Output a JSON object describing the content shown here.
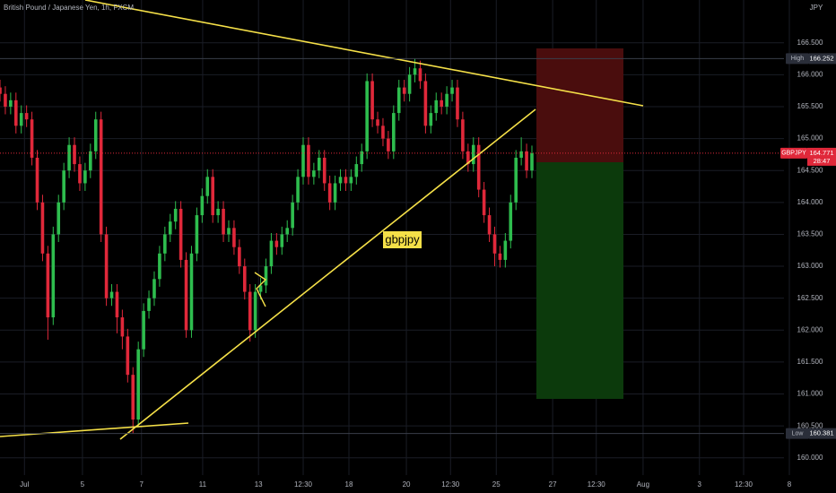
{
  "chart_data": {
    "type": "candlestick",
    "title": "British Pound / Japanese Yen, 1h, FXCM",
    "currency": "JPY",
    "up_color": "#2ebd4e",
    "down_color": "#e0283a",
    "ylim": [
      159.73,
      167.17
    ],
    "yticks": [
      {
        "value": 160,
        "label": "160.000"
      },
      {
        "value": 160.5,
        "label": "160.500"
      },
      {
        "value": 161,
        "label": "161.000"
      },
      {
        "value": 161.5,
        "label": "161.500"
      },
      {
        "value": 162,
        "label": "162.000"
      },
      {
        "value": 162.5,
        "label": "162.500"
      },
      {
        "value": 163,
        "label": "163.000"
      },
      {
        "value": 163.5,
        "label": "163.500"
      },
      {
        "value": 164,
        "label": "164.000"
      },
      {
        "value": 164.5,
        "label": "164.500"
      },
      {
        "value": 165,
        "label": "165.000"
      },
      {
        "value": 165.5,
        "label": "165.500"
      },
      {
        "value": 166,
        "label": "166.000"
      },
      {
        "value": 166.5,
        "label": "166.500"
      }
    ],
    "xlim": [
      0,
      148.4
    ],
    "xticks": [
      {
        "value": 4.6,
        "label": "Jul"
      },
      {
        "value": 15.5,
        "label": "5"
      },
      {
        "value": 26.6,
        "label": "7"
      },
      {
        "value": 38.1,
        "label": "11"
      },
      {
        "value": 48.6,
        "label": "13"
      },
      {
        "value": 57,
        "label": "12:30"
      },
      {
        "value": 65.6,
        "label": "18"
      },
      {
        "value": 76.4,
        "label": "20"
      },
      {
        "value": 84.7,
        "label": "12:30"
      },
      {
        "value": 93.3,
        "label": "25"
      },
      {
        "value": 103.9,
        "label": "27"
      },
      {
        "value": 112.1,
        "label": "12:30"
      },
      {
        "value": 120.9,
        "label": "Aug"
      },
      {
        "value": 131.5,
        "label": "3"
      },
      {
        "value": 139.8,
        "label": "12:30"
      },
      {
        "value": 148.4,
        "label": "8"
      }
    ],
    "high": {
      "label": "High",
      "value": 166.252,
      "value_label": "166.252"
    },
    "low": {
      "label": "Low",
      "value": 160.381,
      "value_label": "160.381"
    },
    "last": {
      "label": "GBPJPY",
      "value": 164.771,
      "value_label": "164.771",
      "countdown": "28:47"
    },
    "annotation": "gbpjpy",
    "candles": [
      [
        165.8,
        165.92,
        165.58,
        165.7
      ],
      [
        165.7,
        165.82,
        165.38,
        165.5
      ],
      [
        165.5,
        165.72,
        165.38,
        165.6
      ],
      [
        165.6,
        165.72,
        165.08,
        165.2
      ],
      [
        165.2,
        165.52,
        165.08,
        165.4
      ],
      [
        165.4,
        165.52,
        165.18,
        165.3
      ],
      [
        165.3,
        165.42,
        164.58,
        164.7
      ],
      [
        164.7,
        164.82,
        163.88,
        164.0
      ],
      [
        164.0,
        164.12,
        163.08,
        163.2
      ],
      [
        163.2,
        163.32,
        161.85,
        162.2
      ],
      [
        162.2,
        163.62,
        162.08,
        163.5
      ],
      [
        163.5,
        164.12,
        163.38,
        164.0
      ],
      [
        164.0,
        164.62,
        163.88,
        164.5
      ],
      [
        164.5,
        165.02,
        164.38,
        164.9
      ],
      [
        164.9,
        165.02,
        164.48,
        164.6
      ],
      [
        164.6,
        164.72,
        164.18,
        164.3
      ],
      [
        164.3,
        164.62,
        164.18,
        164.5
      ],
      [
        164.5,
        164.92,
        164.38,
        164.8
      ],
      [
        164.8,
        165.42,
        164.68,
        165.3
      ],
      [
        165.3,
        165.42,
        163.38,
        163.5
      ],
      [
        163.5,
        163.62,
        162.38,
        162.5
      ],
      [
        162.5,
        162.72,
        162.38,
        162.6
      ],
      [
        162.6,
        162.72,
        161.95,
        162.2
      ],
      [
        162.2,
        162.32,
        161.7,
        161.9
      ],
      [
        161.9,
        162.02,
        161.18,
        161.3
      ],
      [
        161.3,
        161.42,
        160.38,
        160.6
      ],
      [
        160.6,
        161.82,
        160.48,
        161.7
      ],
      [
        161.7,
        162.42,
        161.58,
        162.3
      ],
      [
        162.3,
        162.62,
        162.18,
        162.5
      ],
      [
        162.5,
        162.92,
        162.38,
        162.8
      ],
      [
        162.8,
        163.32,
        162.68,
        163.2
      ],
      [
        163.2,
        163.62,
        163.08,
        163.5
      ],
      [
        163.5,
        163.82,
        163.38,
        163.7
      ],
      [
        163.7,
        164.02,
        163.58,
        163.9
      ],
      [
        163.9,
        164.02,
        162.98,
        163.1
      ],
      [
        163.1,
        163.22,
        161.88,
        162.0
      ],
      [
        162.0,
        163.32,
        161.88,
        163.2
      ],
      [
        163.2,
        163.92,
        163.08,
        163.8
      ],
      [
        163.8,
        164.22,
        163.68,
        164.1
      ],
      [
        164.1,
        164.52,
        163.98,
        164.4
      ],
      [
        164.4,
        164.52,
        163.68,
        163.8
      ],
      [
        163.8,
        164.02,
        163.68,
        163.9
      ],
      [
        163.9,
        164.02,
        163.38,
        163.5
      ],
      [
        163.5,
        163.72,
        163.38,
        163.6
      ],
      [
        163.6,
        163.72,
        163.18,
        163.3
      ],
      [
        163.3,
        163.42,
        162.88,
        163.0
      ],
      [
        163.0,
        163.12,
        162.48,
        162.6
      ],
      [
        162.6,
        162.72,
        161.82,
        162.0
      ],
      [
        162.0,
        162.72,
        161.88,
        162.6
      ],
      [
        162.6,
        162.82,
        162.48,
        162.7
      ],
      [
        162.7,
        163.12,
        162.58,
        163.0
      ],
      [
        163.0,
        163.52,
        162.88,
        163.4
      ],
      [
        163.4,
        163.52,
        163.18,
        163.3
      ],
      [
        163.3,
        163.62,
        163.18,
        163.5
      ],
      [
        163.5,
        163.72,
        163.38,
        163.6
      ],
      [
        163.6,
        164.12,
        163.48,
        164.0
      ],
      [
        164.0,
        164.52,
        163.88,
        164.4
      ],
      [
        164.4,
        165.02,
        164.28,
        164.9
      ],
      [
        164.9,
        165.02,
        164.28,
        164.4
      ],
      [
        164.4,
        164.62,
        164.28,
        164.5
      ],
      [
        164.5,
        164.82,
        164.38,
        164.7
      ],
      [
        164.7,
        164.82,
        164.18,
        164.3
      ],
      [
        164.3,
        164.42,
        163.88,
        164.0
      ],
      [
        164.0,
        164.42,
        163.88,
        164.3
      ],
      [
        164.3,
        164.52,
        164.18,
        164.4
      ],
      [
        164.4,
        164.52,
        164.18,
        164.3
      ],
      [
        164.3,
        164.52,
        164.18,
        164.4
      ],
      [
        164.4,
        164.72,
        164.28,
        164.6
      ],
      [
        164.6,
        164.92,
        164.48,
        164.8
      ],
      [
        164.8,
        166.02,
        164.68,
        165.9
      ],
      [
        165.9,
        166.02,
        165.18,
        165.3
      ],
      [
        165.3,
        165.42,
        165.08,
        165.2
      ],
      [
        165.2,
        165.32,
        164.88,
        165.0
      ],
      [
        165.0,
        165.12,
        164.68,
        164.8
      ],
      [
        164.8,
        165.52,
        164.68,
        165.4
      ],
      [
        165.4,
        165.92,
        165.28,
        165.8
      ],
      [
        165.8,
        165.92,
        165.58,
        165.7
      ],
      [
        165.7,
        166.12,
        165.58,
        166.0
      ],
      [
        166.0,
        166.25,
        165.88,
        166.1
      ],
      [
        166.1,
        166.22,
        165.78,
        165.9
      ],
      [
        165.9,
        166.02,
        165.08,
        165.2
      ],
      [
        165.2,
        165.52,
        165.08,
        165.4
      ],
      [
        165.4,
        165.72,
        165.28,
        165.6
      ],
      [
        165.6,
        165.72,
        165.38,
        165.5
      ],
      [
        165.5,
        165.82,
        165.38,
        165.7
      ],
      [
        165.7,
        165.92,
        165.58,
        165.8
      ],
      [
        165.8,
        165.92,
        165.18,
        165.3
      ],
      [
        165.3,
        165.42,
        164.68,
        164.8
      ],
      [
        164.8,
        164.92,
        164.48,
        164.6
      ],
      [
        164.6,
        165.02,
        164.48,
        164.9
      ],
      [
        164.9,
        165.02,
        164.08,
        164.2
      ],
      [
        164.2,
        164.32,
        163.68,
        163.8
      ],
      [
        163.8,
        163.92,
        163.38,
        163.5
      ],
      [
        163.5,
        163.62,
        163.0,
        163.2
      ],
      [
        163.2,
        163.32,
        162.98,
        163.1
      ],
      [
        163.1,
        163.52,
        162.98,
        163.4
      ],
      [
        163.4,
        164.12,
        163.28,
        164.0
      ],
      [
        164.0,
        164.82,
        163.88,
        164.7
      ],
      [
        164.7,
        165.02,
        164.58,
        164.8
      ],
      [
        164.8,
        164.92,
        164.38,
        164.5
      ],
      [
        164.5,
        164.89,
        164.38,
        164.77
      ]
    ]
  }
}
